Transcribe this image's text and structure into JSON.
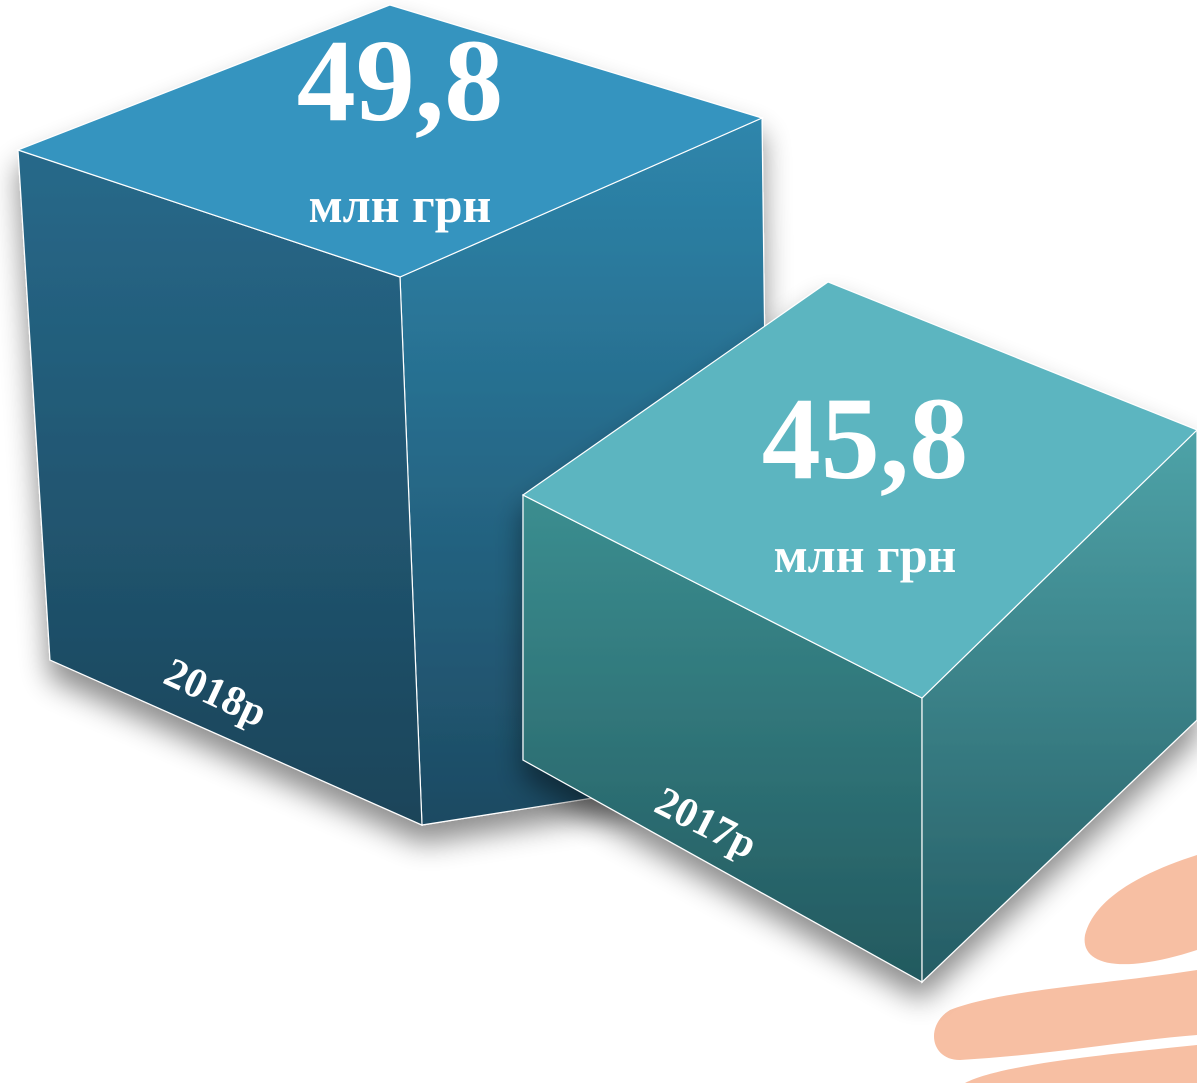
{
  "items": [
    {
      "value": "49,8",
      "unit": "млн грн",
      "label": "2018р"
    },
    {
      "value": "45,8",
      "unit": "млн грн",
      "label": "2017р"
    }
  ]
}
